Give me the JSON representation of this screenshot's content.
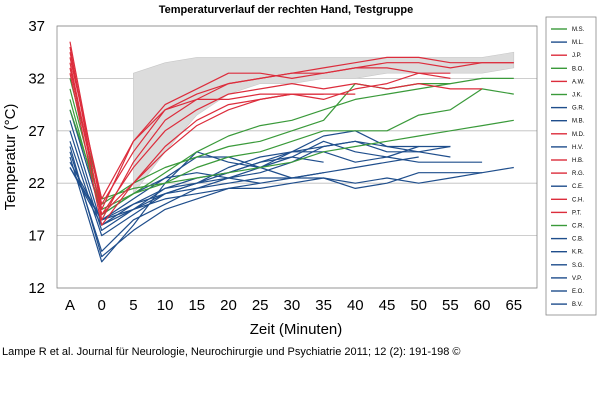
{
  "chart_data": {
    "type": "line",
    "title": "Temperaturverlauf der rechten Hand, Testgruppe",
    "xlabel": "Zeit (Minuten)",
    "ylabel": "Temperatur (°C)",
    "categories": [
      "A",
      "0",
      "5",
      "10",
      "15",
      "20",
      "25",
      "30",
      "35",
      "40",
      "45",
      "50",
      "55",
      "60",
      "65"
    ],
    "y_ticks": [
      12,
      17,
      22,
      27,
      32,
      37
    ],
    "ylim": [
      12,
      37
    ],
    "grid": true,
    "legend_position": "right",
    "colors": {
      "green": "#3a9a3a",
      "blue": "#1f4e8c",
      "red": "#dc2d3c",
      "band": "#dcdcdc"
    },
    "series": [
      {
        "name": "M.S.",
        "color": "green",
        "values": [
          32.0,
          20.5,
          21.5,
          22.0,
          22.5,
          23.0,
          23.5,
          24.0,
          25.0,
          25.5,
          26.0,
          26.5,
          27.0,
          27.5,
          28.0
        ]
      },
      {
        "name": "M.L.",
        "color": "blue",
        "values": [
          24.0,
          18.5,
          19.5,
          20.5,
          21.0,
          21.5,
          22.0,
          22.5,
          23.0,
          23.5,
          24.0,
          24.5,
          null,
          null,
          null
        ]
      },
      {
        "name": "J.P.",
        "color": "red",
        "values": [
          35.5,
          19.5,
          26.0,
          29.0,
          30.5,
          31.5,
          32.0,
          32.5,
          32.5,
          33.0,
          33.5,
          33.5,
          33.0,
          33.5,
          33.5
        ]
      },
      {
        "name": "B.O.",
        "color": "green",
        "values": [
          30.0,
          19.0,
          21.0,
          23.0,
          25.0,
          26.5,
          27.5,
          28.0,
          29.0,
          30.0,
          30.5,
          31.0,
          31.5,
          32.0,
          32.0
        ]
      },
      {
        "name": "A.W.",
        "color": "red",
        "values": [
          35.0,
          18.5,
          24.0,
          28.0,
          30.0,
          31.5,
          32.0,
          32.5,
          33.0,
          33.5,
          34.0,
          34.0,
          33.5,
          33.5,
          33.5
        ]
      },
      {
        "name": "J.K.",
        "color": "green",
        "values": [
          31.0,
          19.5,
          21.0,
          22.0,
          23.5,
          24.5,
          25.0,
          26.0,
          27.0,
          27.0,
          27.0,
          28.5,
          29.0,
          31.0,
          30.5
        ]
      },
      {
        "name": "G.R.",
        "color": "blue",
        "values": [
          28.0,
          18.0,
          19.5,
          21.0,
          22.0,
          23.0,
          24.0,
          25.0,
          25.5,
          26.0,
          25.5,
          25.0,
          25.5,
          null,
          null
        ]
      },
      {
        "name": "M.B.",
        "color": "blue",
        "values": [
          23.5,
          18.5,
          20.0,
          21.5,
          22.0,
          23.5,
          24.5,
          25.0,
          25.0,
          24.0,
          24.5,
          24.0,
          24.0,
          24.0,
          null
        ]
      },
      {
        "name": "M.D.",
        "color": "red",
        "values": [
          34.0,
          20.5,
          26.0,
          29.5,
          31.0,
          32.5,
          32.5,
          32.0,
          32.5,
          33.0,
          33.0,
          32.5,
          32.5,
          null,
          null
        ]
      },
      {
        "name": "H.V.",
        "color": "blue",
        "values": [
          26.0,
          17.0,
          19.0,
          21.0,
          22.0,
          22.5,
          23.0,
          24.0,
          25.5,
          26.0,
          25.0,
          25.0,
          24.5,
          null,
          null
        ]
      },
      {
        "name": "H.B.",
        "color": "red",
        "values": [
          33.0,
          19.0,
          23.5,
          27.0,
          29.0,
          30.5,
          31.0,
          31.5,
          31.0,
          31.5,
          31.0,
          31.5,
          31.0,
          31.0,
          null
        ]
      },
      {
        "name": "R.G.",
        "color": "red",
        "values": [
          32.5,
          18.0,
          22.0,
          25.5,
          28.0,
          29.5,
          30.0,
          30.5,
          30.5,
          30.5,
          null,
          null,
          null,
          null,
          null
        ]
      },
      {
        "name": "C.E.",
        "color": "blue",
        "values": [
          25.0,
          15.5,
          18.5,
          20.0,
          21.5,
          22.0,
          22.5,
          22.5,
          22.5,
          22.0,
          22.5,
          22.0,
          22.5,
          23.0,
          23.5
        ]
      },
      {
        "name": "C.H.",
        "color": "red",
        "values": [
          34.5,
          20.0,
          25.0,
          29.0,
          30.0,
          30.0,
          30.5,
          30.5,
          30.0,
          31.0,
          31.5,
          32.5,
          32.0,
          null,
          null
        ]
      },
      {
        "name": "P.T.",
        "color": "red",
        "values": [
          33.5,
          19.0,
          22.0,
          25.0,
          27.5,
          29.0,
          30.0,
          30.5,
          30.5,
          null,
          null,
          null,
          null,
          null,
          null
        ]
      },
      {
        "name": "C.R.",
        "color": "green",
        "values": [
          29.0,
          20.0,
          22.0,
          23.5,
          24.5,
          25.5,
          26.0,
          27.0,
          28.0,
          31.5,
          31.0,
          31.5,
          31.5,
          null,
          null
        ]
      },
      {
        "name": "C.B.",
        "color": "blue",
        "values": [
          24.5,
          14.5,
          18.0,
          22.0,
          25.0,
          24.0,
          23.5,
          24.5,
          26.0,
          25.0,
          24.5,
          25.5,
          25.5,
          null,
          null
        ]
      },
      {
        "name": "K.R.",
        "color": "blue",
        "values": [
          25.5,
          15.0,
          17.5,
          19.5,
          20.5,
          21.5,
          21.5,
          22.0,
          22.5,
          21.5,
          22.0,
          23.0,
          23.0,
          23.0,
          null
        ]
      },
      {
        "name": "S.G.",
        "color": "blue",
        "values": [
          23.5,
          18.0,
          20.0,
          21.0,
          21.5,
          22.5,
          22.0,
          null,
          null,
          null,
          null,
          null,
          null,
          null,
          null
        ]
      },
      {
        "name": "V.P.",
        "color": "blue",
        "values": [
          27.0,
          17.5,
          19.5,
          21.5,
          22.5,
          23.0,
          24.0,
          24.5,
          24.0,
          null,
          null,
          null,
          null,
          null,
          null
        ]
      },
      {
        "name": "E.O.",
        "color": "blue",
        "values": [
          23.5,
          18.5,
          20.5,
          22.5,
          24.5,
          24.5,
          23.5,
          22.5,
          23.0,
          null,
          null,
          null,
          null,
          null,
          null
        ]
      },
      {
        "name": "B.V.",
        "color": "blue",
        "values": [
          29.0,
          19.0,
          21.0,
          22.5,
          23.0,
          22.5,
          23.5,
          25.0,
          26.5,
          27.0,
          25.5,
          25.5,
          null,
          null,
          null
        ]
      }
    ],
    "band": {
      "upper": [
        null,
        null,
        32.5,
        33.5,
        34.0,
        34.0,
        34.0,
        34.0,
        34.0,
        34.0,
        34.0,
        34.0,
        34.0,
        34.0,
        34.5
      ],
      "lower": [
        null,
        null,
        21.0,
        25.0,
        28.5,
        30.5,
        31.5,
        31.5,
        32.0,
        32.0,
        32.5,
        32.5,
        32.5,
        32.5,
        33.0
      ]
    }
  },
  "caption": "Lampe R et al. Journal für Neurologie, Neurochirurgie und Psychiatrie 2011; 12 (2): 191-198 ©"
}
